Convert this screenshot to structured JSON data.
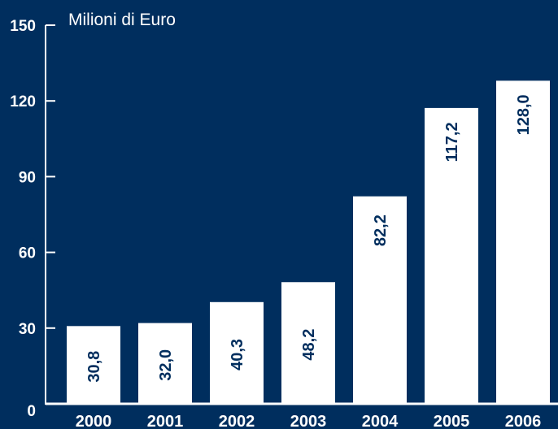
{
  "chart_data": {
    "type": "bar",
    "title": "",
    "ylabel": "Milioni di Euro",
    "xlabel": "",
    "categories": [
      "2000",
      "2001",
      "2002",
      "2003",
      "2004",
      "2005",
      "2006"
    ],
    "values": [
      30.8,
      32.0,
      40.3,
      48.2,
      82.2,
      117.2,
      128.0
    ],
    "value_labels": [
      "30,8",
      "32,0",
      "40,3",
      "48,2",
      "82,2",
      "117,2",
      "128,0"
    ],
    "yticks": [
      0,
      30,
      60,
      90,
      120,
      150
    ],
    "ylim": [
      0,
      150
    ],
    "grid": false,
    "legend": "none"
  },
  "colors": {
    "background": "#002e5e",
    "bar": "#ffffff",
    "bar_label": "#002e5e",
    "axis": "#ffffff",
    "text": "#ffffff"
  }
}
